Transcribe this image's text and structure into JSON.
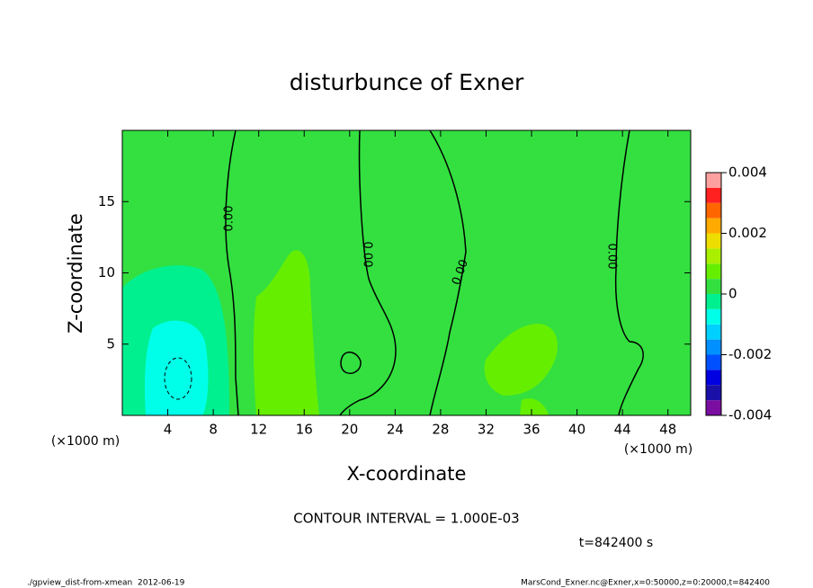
{
  "chart_data": {
    "type": "contour",
    "title": "disturbunce of Exner",
    "x_label": "X-coordinate",
    "y_label": "Z-coordinate",
    "x_unit": "(×1000 m)",
    "y_unit": "(×1000 m)",
    "xlim": [
      0,
      50
    ],
    "xticks": [
      4,
      8,
      12,
      16,
      20,
      24,
      28,
      32,
      36,
      40,
      44,
      48
    ],
    "ylim": [
      0,
      20
    ],
    "yticks": [
      5,
      10,
      15
    ],
    "contour_labels": [
      "0.00",
      "0.00",
      "0.00",
      "0.00"
    ],
    "colorbar": {
      "lim": [
        -0.004,
        0.004
      ],
      "ticks": [
        -0.004,
        -0.002,
        0,
        0.002,
        0.004
      ],
      "colors": [
        "#7a0ea0",
        "#1a10a8",
        "#0000e0",
        "#0050ff",
        "#0090ff",
        "#00d0ff",
        "#00ffe8",
        "#00f090",
        "#33e040",
        "#66ee00",
        "#aaee00",
        "#eedd00",
        "#ffaa00",
        "#ff6600",
        "#ff2020",
        "#ffa0a0"
      ]
    },
    "annotations": {
      "contour_interval": "CONTOUR INTERVAL = 1.000E-03",
      "time": "t=842400 s"
    }
  },
  "footer": {
    "left": "./gpview_dist-from-xmean  2012-06-19",
    "right": "MarsCond_Exner.nc@Exner,x=0:50000,z=0:20000,t=842400"
  }
}
